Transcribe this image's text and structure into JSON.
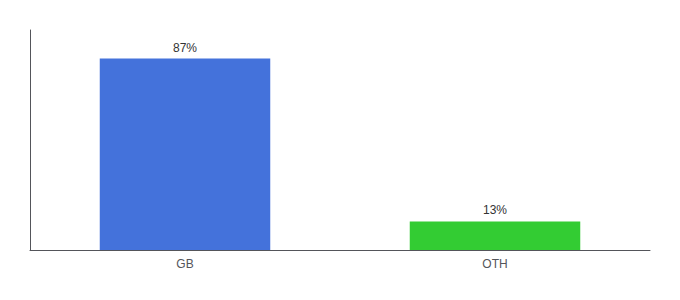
{
  "chart_data": {
    "type": "bar",
    "categories": [
      "GB",
      "OTH"
    ],
    "values": [
      87,
      13
    ],
    "colors": [
      "#4472db",
      "#33cc33"
    ],
    "value_labels": [
      "87%",
      "13%"
    ],
    "data_labels": true,
    "ylim": [
      0,
      100
    ],
    "grid": false,
    "tick_labels": "x"
  }
}
